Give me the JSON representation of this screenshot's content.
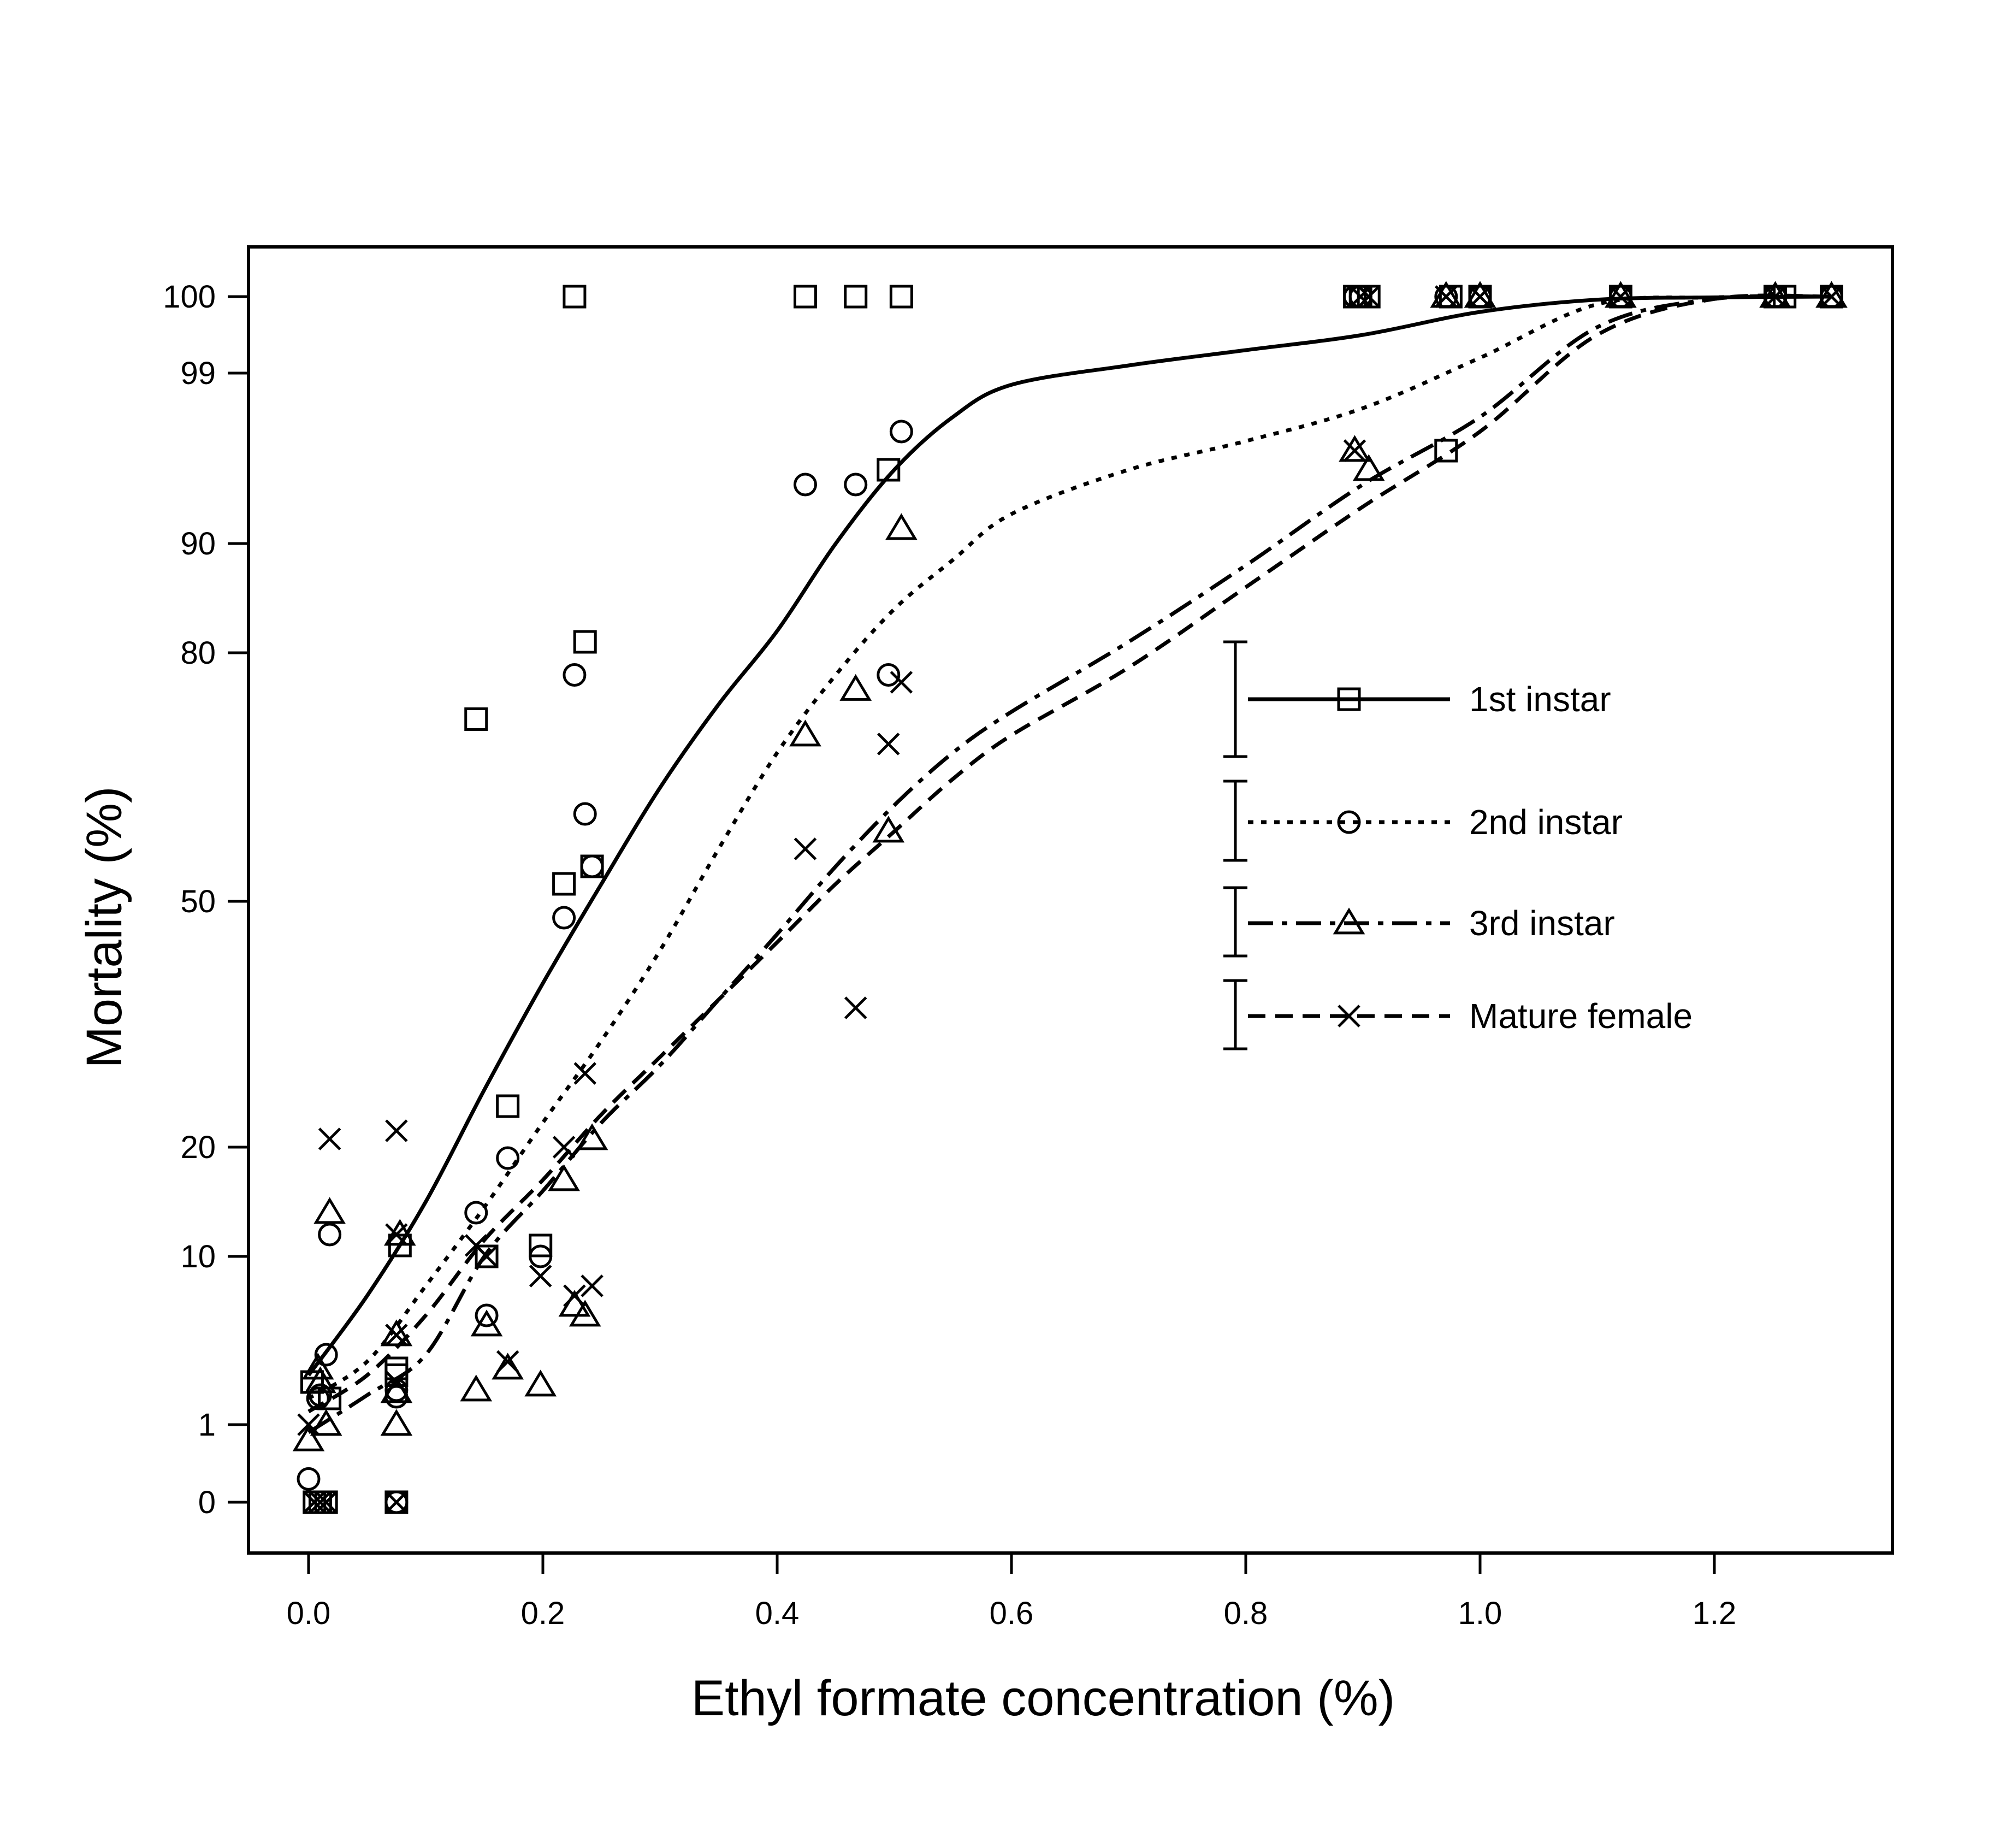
{
  "chart_data": {
    "type": "scatter",
    "title": "",
    "xlabel": "Ethyl formate concentration (%)",
    "ylabel": "Mortality (%)",
    "xlim": [
      -0.1,
      1.3
    ],
    "x_ticks": [
      0.0,
      0.2,
      0.4,
      0.6,
      0.8,
      1.0,
      1.2
    ],
    "x_tick_labels": [
      "0.0",
      "0.2",
      "0.4",
      "0.6",
      "0.8",
      "1.0",
      "1.2"
    ],
    "y_scale": "probit",
    "y_ticks": [
      0,
      1,
      10,
      20,
      50,
      80,
      90,
      99,
      100
    ],
    "y_tick_labels": [
      "0",
      "1",
      "10",
      "20",
      "50",
      "80",
      "90",
      "99",
      "100"
    ],
    "grid": false,
    "legend_position": "right",
    "series": [
      {
        "name": "1st instar",
        "marker": "square",
        "line_style": "solid",
        "points": [
          [
            0.005,
            0
          ],
          [
            0.01,
            0
          ],
          [
            0.015,
            0
          ],
          [
            0.003,
            3
          ],
          [
            0.018,
            2
          ],
          [
            0.075,
            0
          ],
          [
            0.075,
            4
          ],
          [
            0.075,
            3.5
          ],
          [
            0.078,
            11
          ],
          [
            0.143,
            71
          ],
          [
            0.152,
            10
          ],
          [
            0.17,
            25
          ],
          [
            0.198,
            11
          ],
          [
            0.218,
            52
          ],
          [
            0.227,
            100
          ],
          [
            0.236,
            81
          ],
          [
            0.242,
            54
          ],
          [
            0.424,
            100
          ],
          [
            0.467,
            100
          ],
          [
            0.495,
            95
          ],
          [
            0.506,
            100
          ],
          [
            0.893,
            100
          ],
          [
            0.898,
            100
          ],
          [
            0.905,
            100
          ],
          [
            0.971,
            96
          ],
          [
            0.975,
            100
          ],
          [
            1.0,
            100
          ],
          [
            1.12,
            100
          ],
          [
            1.252,
            100
          ],
          [
            1.26,
            100
          ],
          [
            1.3,
            100
          ]
        ],
        "curve": [
          [
            0.0,
            3.5
          ],
          [
            0.05,
            8
          ],
          [
            0.1,
            15
          ],
          [
            0.15,
            27
          ],
          [
            0.2,
            40
          ],
          [
            0.25,
            52
          ],
          [
            0.3,
            63
          ],
          [
            0.35,
            73
          ],
          [
            0.4,
            82
          ],
          [
            0.45,
            90
          ],
          [
            0.5,
            95
          ],
          [
            0.55,
            97.5
          ],
          [
            0.6,
            98.6
          ],
          [
            0.7,
            99.1
          ],
          [
            0.8,
            99.3
          ],
          [
            0.9,
            99.5
          ],
          [
            1.0,
            99.8
          ],
          [
            1.1,
            99.96
          ],
          [
            1.2,
            99.99
          ],
          [
            1.3,
            100
          ]
        ]
      },
      {
        "name": "2nd instar",
        "marker": "circle",
        "line_style": "dotted",
        "points": [
          [
            0.0,
            0.3
          ],
          [
            0.008,
            2
          ],
          [
            0.01,
            2.2
          ],
          [
            0.015,
            5
          ],
          [
            0.018,
            12
          ],
          [
            0.075,
            0
          ],
          [
            0.075,
            2.1
          ],
          [
            0.075,
            2.5
          ],
          [
            0.143,
            14
          ],
          [
            0.152,
            7
          ],
          [
            0.17,
            19
          ],
          [
            0.198,
            10
          ],
          [
            0.218,
            48
          ],
          [
            0.227,
            77
          ],
          [
            0.236,
            60
          ],
          [
            0.242,
            54
          ],
          [
            0.424,
            94
          ],
          [
            0.467,
            94
          ],
          [
            0.495,
            77
          ],
          [
            0.506,
            97
          ],
          [
            0.893,
            100
          ],
          [
            0.898,
            100
          ],
          [
            0.971,
            100
          ],
          [
            1.0,
            100
          ],
          [
            1.12,
            100
          ],
          [
            1.252,
            100
          ],
          [
            1.3,
            100
          ]
        ],
        "curve": [
          [
            0.0,
            2
          ],
          [
            0.05,
            4.5
          ],
          [
            0.1,
            8.5
          ],
          [
            0.15,
            14.5
          ],
          [
            0.2,
            23
          ],
          [
            0.25,
            33
          ],
          [
            0.3,
            44
          ],
          [
            0.35,
            56
          ],
          [
            0.4,
            67
          ],
          [
            0.45,
            77
          ],
          [
            0.5,
            84
          ],
          [
            0.55,
            88.5
          ],
          [
            0.6,
            92
          ],
          [
            0.7,
            95
          ],
          [
            0.8,
            96.5
          ],
          [
            0.9,
            97.8
          ],
          [
            1.0,
            99.2
          ],
          [
            1.1,
            99.9
          ],
          [
            1.2,
            99.99
          ],
          [
            1.3,
            100
          ]
        ]
      },
      {
        "name": "3rd instar",
        "marker": "triangle",
        "line_style": "dashdot",
        "points": [
          [
            0.0,
            0.8
          ],
          [
            0.008,
            4
          ],
          [
            0.01,
            3
          ],
          [
            0.015,
            1
          ],
          [
            0.018,
            14
          ],
          [
            0.075,
            1
          ],
          [
            0.075,
            2.4
          ],
          [
            0.075,
            6
          ],
          [
            0.078,
            12
          ],
          [
            0.143,
            2.5
          ],
          [
            0.152,
            6.5
          ],
          [
            0.17,
            4
          ],
          [
            0.198,
            2.8
          ],
          [
            0.218,
            17
          ],
          [
            0.227,
            7.5
          ],
          [
            0.236,
            7
          ],
          [
            0.242,
            21
          ],
          [
            0.424,
            69
          ],
          [
            0.467,
            75
          ],
          [
            0.495,
            58
          ],
          [
            0.506,
            91
          ],
          [
            0.893,
            96
          ],
          [
            0.905,
            95
          ],
          [
            0.971,
            100
          ],
          [
            1.0,
            100
          ],
          [
            1.12,
            100
          ],
          [
            1.252,
            100
          ],
          [
            1.3,
            100
          ]
        ],
        "curve": [
          [
            0.0,
            0.9
          ],
          [
            0.05,
            2.2
          ],
          [
            0.1,
            5
          ],
          [
            0.15,
            10
          ],
          [
            0.2,
            16
          ],
          [
            0.25,
            23
          ],
          [
            0.3,
            30
          ],
          [
            0.35,
            38
          ],
          [
            0.4,
            46
          ],
          [
            0.45,
            54
          ],
          [
            0.5,
            61
          ],
          [
            0.55,
            67
          ],
          [
            0.6,
            72
          ],
          [
            0.7,
            81
          ],
          [
            0.8,
            88
          ],
          [
            0.9,
            94
          ],
          [
            1.0,
            97.5
          ],
          [
            1.1,
            99.6
          ],
          [
            1.2,
            99.97
          ],
          [
            1.3,
            100
          ]
        ]
      },
      {
        "name": "Mature female",
        "marker": "cross",
        "line_style": "dashed",
        "points": [
          [
            0.0,
            1
          ],
          [
            0.005,
            0
          ],
          [
            0.01,
            0
          ],
          [
            0.015,
            0
          ],
          [
            0.018,
            21
          ],
          [
            0.075,
            0
          ],
          [
            0.075,
            3
          ],
          [
            0.075,
            22
          ],
          [
            0.075,
            12
          ],
          [
            0.075,
            6
          ],
          [
            0.143,
            11
          ],
          [
            0.152,
            10
          ],
          [
            0.17,
            4.5
          ],
          [
            0.198,
            9
          ],
          [
            0.218,
            20
          ],
          [
            0.227,
            8
          ],
          [
            0.236,
            29
          ],
          [
            0.242,
            8.5
          ],
          [
            0.424,
            56
          ],
          [
            0.467,
            37
          ],
          [
            0.495,
            68
          ],
          [
            0.506,
            76
          ],
          [
            0.893,
            96
          ],
          [
            0.898,
            100
          ],
          [
            0.905,
            100
          ],
          [
            0.971,
            100
          ],
          [
            1.0,
            100
          ],
          [
            1.12,
            100
          ],
          [
            1.252,
            100
          ],
          [
            1.3,
            100
          ]
        ],
        "curve": [
          [
            0.0,
            1.5
          ],
          [
            0.05,
            3.5
          ],
          [
            0.1,
            7
          ],
          [
            0.15,
            11.5
          ],
          [
            0.2,
            17
          ],
          [
            0.25,
            24
          ],
          [
            0.3,
            31
          ],
          [
            0.35,
            38
          ],
          [
            0.4,
            45
          ],
          [
            0.45,
            52
          ],
          [
            0.5,
            58
          ],
          [
            0.55,
            64
          ],
          [
            0.6,
            69
          ],
          [
            0.7,
            78
          ],
          [
            0.8,
            86
          ],
          [
            0.9,
            92.5
          ],
          [
            1.0,
            97
          ],
          [
            1.1,
            99.5
          ],
          [
            1.2,
            99.97
          ],
          [
            1.3,
            100
          ]
        ]
      }
    ]
  }
}
